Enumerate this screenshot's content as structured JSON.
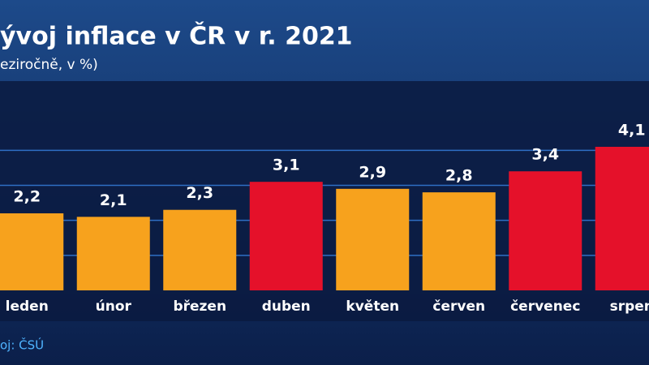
{
  "chart_data": {
    "type": "bar",
    "title": "ývoj inflace v ČR v r. 2021",
    "subtitle": "eziročně, v %)",
    "source": "oj: ČSÚ",
    "categories": [
      "leden",
      "únor",
      "březen",
      "duben",
      "květen",
      "červen",
      "červenec",
      "srpen"
    ],
    "values": [
      2.2,
      2.1,
      2.3,
      3.1,
      2.9,
      2.8,
      3.4,
      4.1
    ],
    "value_labels": [
      "2,2",
      "2,1",
      "2,3",
      "3,1",
      "2,9",
      "2,8",
      "3,4",
      "4,1"
    ],
    "colors": [
      "#f7a21d",
      "#f7a21d",
      "#f7a21d",
      "#e5112a",
      "#f7a21d",
      "#f7a21d",
      "#e5112a",
      "#e5112a"
    ],
    "ylim": [
      0,
      4.1
    ],
    "yticks": [
      1,
      2,
      3,
      4
    ],
    "grid": true
  }
}
